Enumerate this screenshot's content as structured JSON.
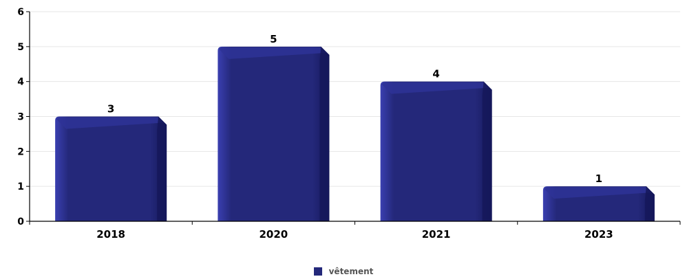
{
  "colors": {
    "bar_main": "#24287a",
    "bar_light": "#3a3fb0",
    "bar_dark": "#15185a",
    "bar_top": "#2e3296",
    "axis": "#000000",
    "grid": "#e6e6e6",
    "tick_text": "#000000",
    "legend_text": "#555555"
  },
  "chart_data": {
    "type": "bar",
    "categories": [
      "2018",
      "2020",
      "2021",
      "2023"
    ],
    "series": [
      {
        "name": "vêtement",
        "values": [
          3,
          5,
          4,
          1
        ]
      }
    ],
    "data_labels": [
      "3",
      "5",
      "4",
      "1"
    ],
    "ylim": [
      0,
      6
    ],
    "y_ticks": [
      "0",
      "1",
      "2",
      "3",
      "4",
      "5",
      "6"
    ],
    "grid": true,
    "legend": {
      "position": "bottom-center",
      "entries": [
        "vêtement"
      ]
    }
  }
}
